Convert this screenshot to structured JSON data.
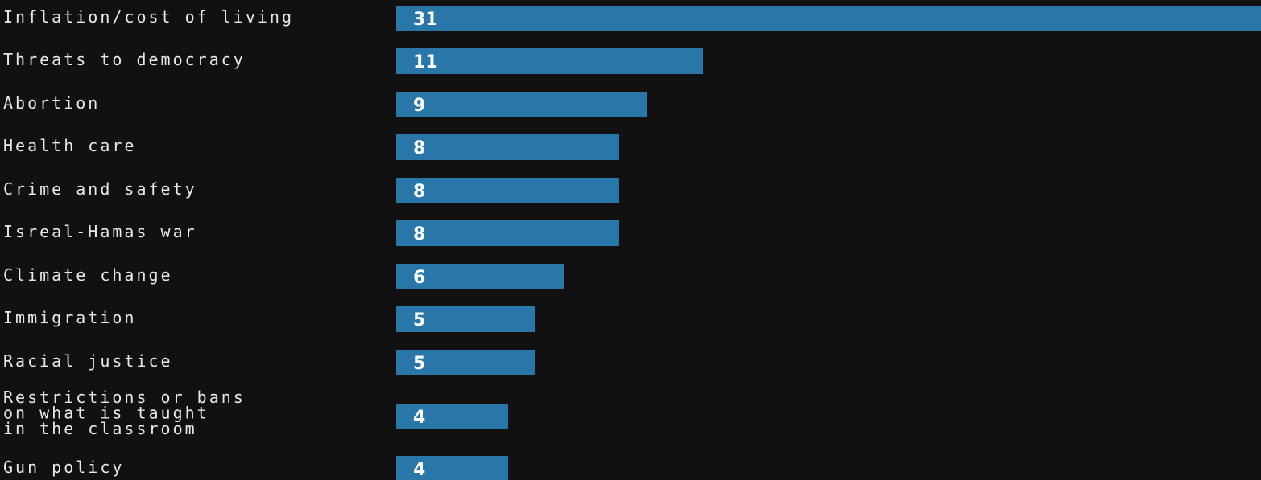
{
  "colors": {
    "background": "#111111",
    "bar": "#2877a8",
    "label_text": "#e8e8e8",
    "value_text": "#ffffff"
  },
  "chart_data": {
    "type": "bar",
    "orientation": "horizontal",
    "categories": [
      "Inflation/cost of living",
      "Threats to democracy",
      "Abortion",
      "Health care",
      "Crime and safety",
      "Isreal-Hamas war",
      "Climate change",
      "Immigration",
      "Racial justice",
      "Restrictions or bans on what is taught in the classroom",
      "Gun policy"
    ],
    "category_lines": [
      [
        "Inflation/cost of living"
      ],
      [
        "Threats to democracy"
      ],
      [
        "Abortion"
      ],
      [
        "Health care"
      ],
      [
        "Crime and safety"
      ],
      [
        "Isreal-Hamas war"
      ],
      [
        "Climate change"
      ],
      [
        "Immigration"
      ],
      [
        "Racial justice"
      ],
      [
        "Restrictions or bans",
        "on what is taught",
        "in the classroom"
      ],
      [
        "Gun policy"
      ]
    ],
    "values": [
      31,
      11,
      9,
      8,
      8,
      8,
      6,
      5,
      5,
      4,
      4
    ],
    "xlim": [
      0,
      31
    ],
    "grid": false,
    "legend": "none",
    "data_labels": "inside-bar-left"
  }
}
